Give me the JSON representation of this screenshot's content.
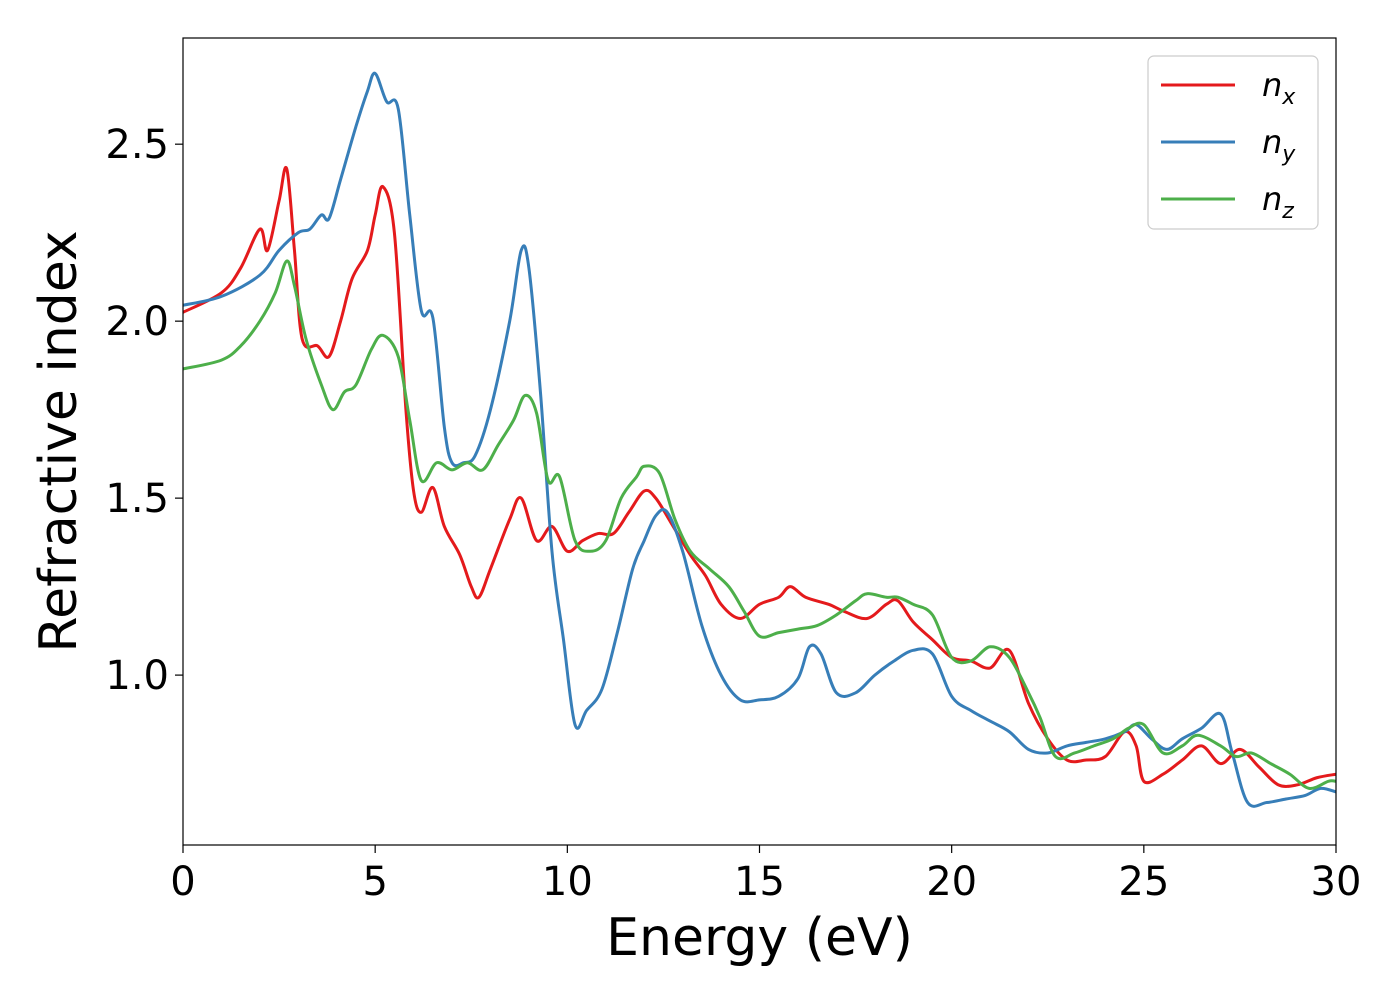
{
  "chart_data": {
    "type": "line",
    "xlabel": "Energy (eV)",
    "ylabel": "Refractive index",
    "xlim": [
      0,
      30
    ],
    "ylim": [
      0.52,
      2.8
    ],
    "xticks": [
      0,
      5,
      10,
      15,
      20,
      25,
      30
    ],
    "xtick_labels": [
      "0",
      "5",
      "10",
      "15",
      "20",
      "25",
      "30"
    ],
    "yticks": [
      1.0,
      1.5,
      2.0,
      2.5
    ],
    "ytick_labels": [
      "1.0",
      "1.5",
      "2.0",
      "2.5"
    ],
    "grid": false,
    "legend_position": "top-right",
    "series": [
      {
        "name": "n_x",
        "label_base": "n",
        "label_sub": "x",
        "color": "#e41a1c",
        "x": [
          0,
          1,
          1.5,
          2,
          2.2,
          2.5,
          2.7,
          2.9,
          3.1,
          3.5,
          3.8,
          4.1,
          4.4,
          4.8,
          5.0,
          5.2,
          5.5,
          5.8,
          6.0,
          6.2,
          6.5,
          6.8,
          7.2,
          7.5,
          7.7,
          8.0,
          8.5,
          8.8,
          9.2,
          9.6,
          10.0,
          10.4,
          10.8,
          11.2,
          11.6,
          12.0,
          12.3,
          12.7,
          13.2,
          13.6,
          14.0,
          14.5,
          15.0,
          15.5,
          15.8,
          16.2,
          16.8,
          17.2,
          17.8,
          18.3,
          18.6,
          19.0,
          19.5,
          20.0,
          20.5,
          21.0,
          21.5,
          22.0,
          22.5,
          23.0,
          23.5,
          24.0,
          24.5,
          24.8,
          25.0,
          25.5,
          26.0,
          26.5,
          27.0,
          27.5,
          28.0,
          28.5,
          29.0,
          29.5,
          30.0
        ],
        "values": [
          2.025,
          2.08,
          2.15,
          2.26,
          2.2,
          2.34,
          2.43,
          2.2,
          1.95,
          1.93,
          1.9,
          2.0,
          2.12,
          2.2,
          2.3,
          2.38,
          2.25,
          1.75,
          1.52,
          1.46,
          1.53,
          1.42,
          1.34,
          1.25,
          1.22,
          1.3,
          1.44,
          1.5,
          1.38,
          1.42,
          1.35,
          1.38,
          1.4,
          1.4,
          1.46,
          1.52,
          1.5,
          1.43,
          1.34,
          1.28,
          1.2,
          1.16,
          1.2,
          1.22,
          1.25,
          1.22,
          1.2,
          1.18,
          1.16,
          1.2,
          1.21,
          1.15,
          1.1,
          1.05,
          1.04,
          1.02,
          1.07,
          0.92,
          0.82,
          0.76,
          0.76,
          0.77,
          0.84,
          0.8,
          0.7,
          0.72,
          0.76,
          0.8,
          0.75,
          0.79,
          0.74,
          0.69,
          0.69,
          0.71,
          0.72
        ]
      },
      {
        "name": "n_y",
        "label_base": "n",
        "label_sub": "y",
        "color": "#377eb8",
        "x": [
          0,
          1,
          2,
          2.5,
          3.0,
          3.3,
          3.6,
          3.8,
          4.1,
          4.5,
          4.8,
          5.0,
          5.3,
          5.6,
          5.9,
          6.2,
          6.5,
          6.8,
          7.0,
          7.3,
          7.6,
          8.0,
          8.5,
          8.8,
          9.0,
          9.3,
          9.6,
          9.9,
          10.2,
          10.5,
          10.9,
          11.3,
          11.7,
          12.0,
          12.3,
          12.6,
          13.0,
          13.5,
          14.0,
          14.5,
          15.0,
          15.5,
          16.0,
          16.3,
          16.6,
          17.0,
          17.5,
          18.0,
          18.5,
          19.0,
          19.5,
          20.0,
          20.5,
          21.0,
          21.5,
          22.0,
          22.5,
          23.0,
          23.5,
          24.0,
          24.5,
          24.8,
          25.2,
          25.6,
          26.0,
          26.5,
          27.0,
          27.3,
          27.7,
          28.2,
          28.7,
          29.2,
          29.6,
          30.0
        ],
        "values": [
          2.045,
          2.07,
          2.13,
          2.2,
          2.25,
          2.26,
          2.3,
          2.29,
          2.4,
          2.55,
          2.65,
          2.7,
          2.62,
          2.6,
          2.3,
          2.03,
          2.01,
          1.7,
          1.6,
          1.6,
          1.62,
          1.75,
          2.0,
          2.2,
          2.15,
          1.8,
          1.35,
          1.1,
          0.86,
          0.9,
          0.96,
          1.12,
          1.3,
          1.38,
          1.45,
          1.46,
          1.35,
          1.14,
          1.0,
          0.93,
          0.93,
          0.94,
          0.99,
          1.08,
          1.06,
          0.95,
          0.95,
          1.0,
          1.04,
          1.07,
          1.06,
          0.94,
          0.9,
          0.87,
          0.84,
          0.79,
          0.78,
          0.8,
          0.81,
          0.82,
          0.84,
          0.86,
          0.82,
          0.79,
          0.82,
          0.85,
          0.89,
          0.78,
          0.64,
          0.64,
          0.65,
          0.66,
          0.68,
          0.67
        ]
      },
      {
        "name": "n_z",
        "label_base": "n",
        "label_sub": "z",
        "color": "#4daf4a",
        "x": [
          0,
          1,
          1.5,
          2,
          2.4,
          2.7,
          2.9,
          3.2,
          3.6,
          3.9,
          4.2,
          4.5,
          4.9,
          5.2,
          5.6,
          5.9,
          6.2,
          6.6,
          7.0,
          7.4,
          7.8,
          8.2,
          8.6,
          8.9,
          9.2,
          9.5,
          9.8,
          10.2,
          10.6,
          11.0,
          11.4,
          11.8,
          12.0,
          12.4,
          12.8,
          13.2,
          13.7,
          14.2,
          14.6,
          15.0,
          15.5,
          16.0,
          16.5,
          17.0,
          17.5,
          17.8,
          18.3,
          18.6,
          19.0,
          19.5,
          20.0,
          20.5,
          21.0,
          21.5,
          22.0,
          22.3,
          22.7,
          23.2,
          23.7,
          24.2,
          24.6,
          25.0,
          25.5,
          26.0,
          26.4,
          27.0,
          27.4,
          27.8,
          28.3,
          28.8,
          29.3,
          29.8,
          30.0
        ],
        "values": [
          1.865,
          1.89,
          1.93,
          2.0,
          2.08,
          2.17,
          2.1,
          1.95,
          1.82,
          1.75,
          1.8,
          1.82,
          1.92,
          1.96,
          1.9,
          1.72,
          1.55,
          1.6,
          1.58,
          1.6,
          1.58,
          1.65,
          1.72,
          1.79,
          1.74,
          1.55,
          1.56,
          1.38,
          1.35,
          1.38,
          1.5,
          1.56,
          1.59,
          1.57,
          1.44,
          1.35,
          1.3,
          1.25,
          1.18,
          1.11,
          1.12,
          1.13,
          1.14,
          1.17,
          1.21,
          1.23,
          1.22,
          1.22,
          1.2,
          1.17,
          1.05,
          1.04,
          1.08,
          1.05,
          0.95,
          0.88,
          0.77,
          0.78,
          0.8,
          0.82,
          0.85,
          0.86,
          0.78,
          0.8,
          0.83,
          0.8,
          0.77,
          0.78,
          0.75,
          0.72,
          0.68,
          0.7,
          0.7
        ]
      }
    ]
  }
}
